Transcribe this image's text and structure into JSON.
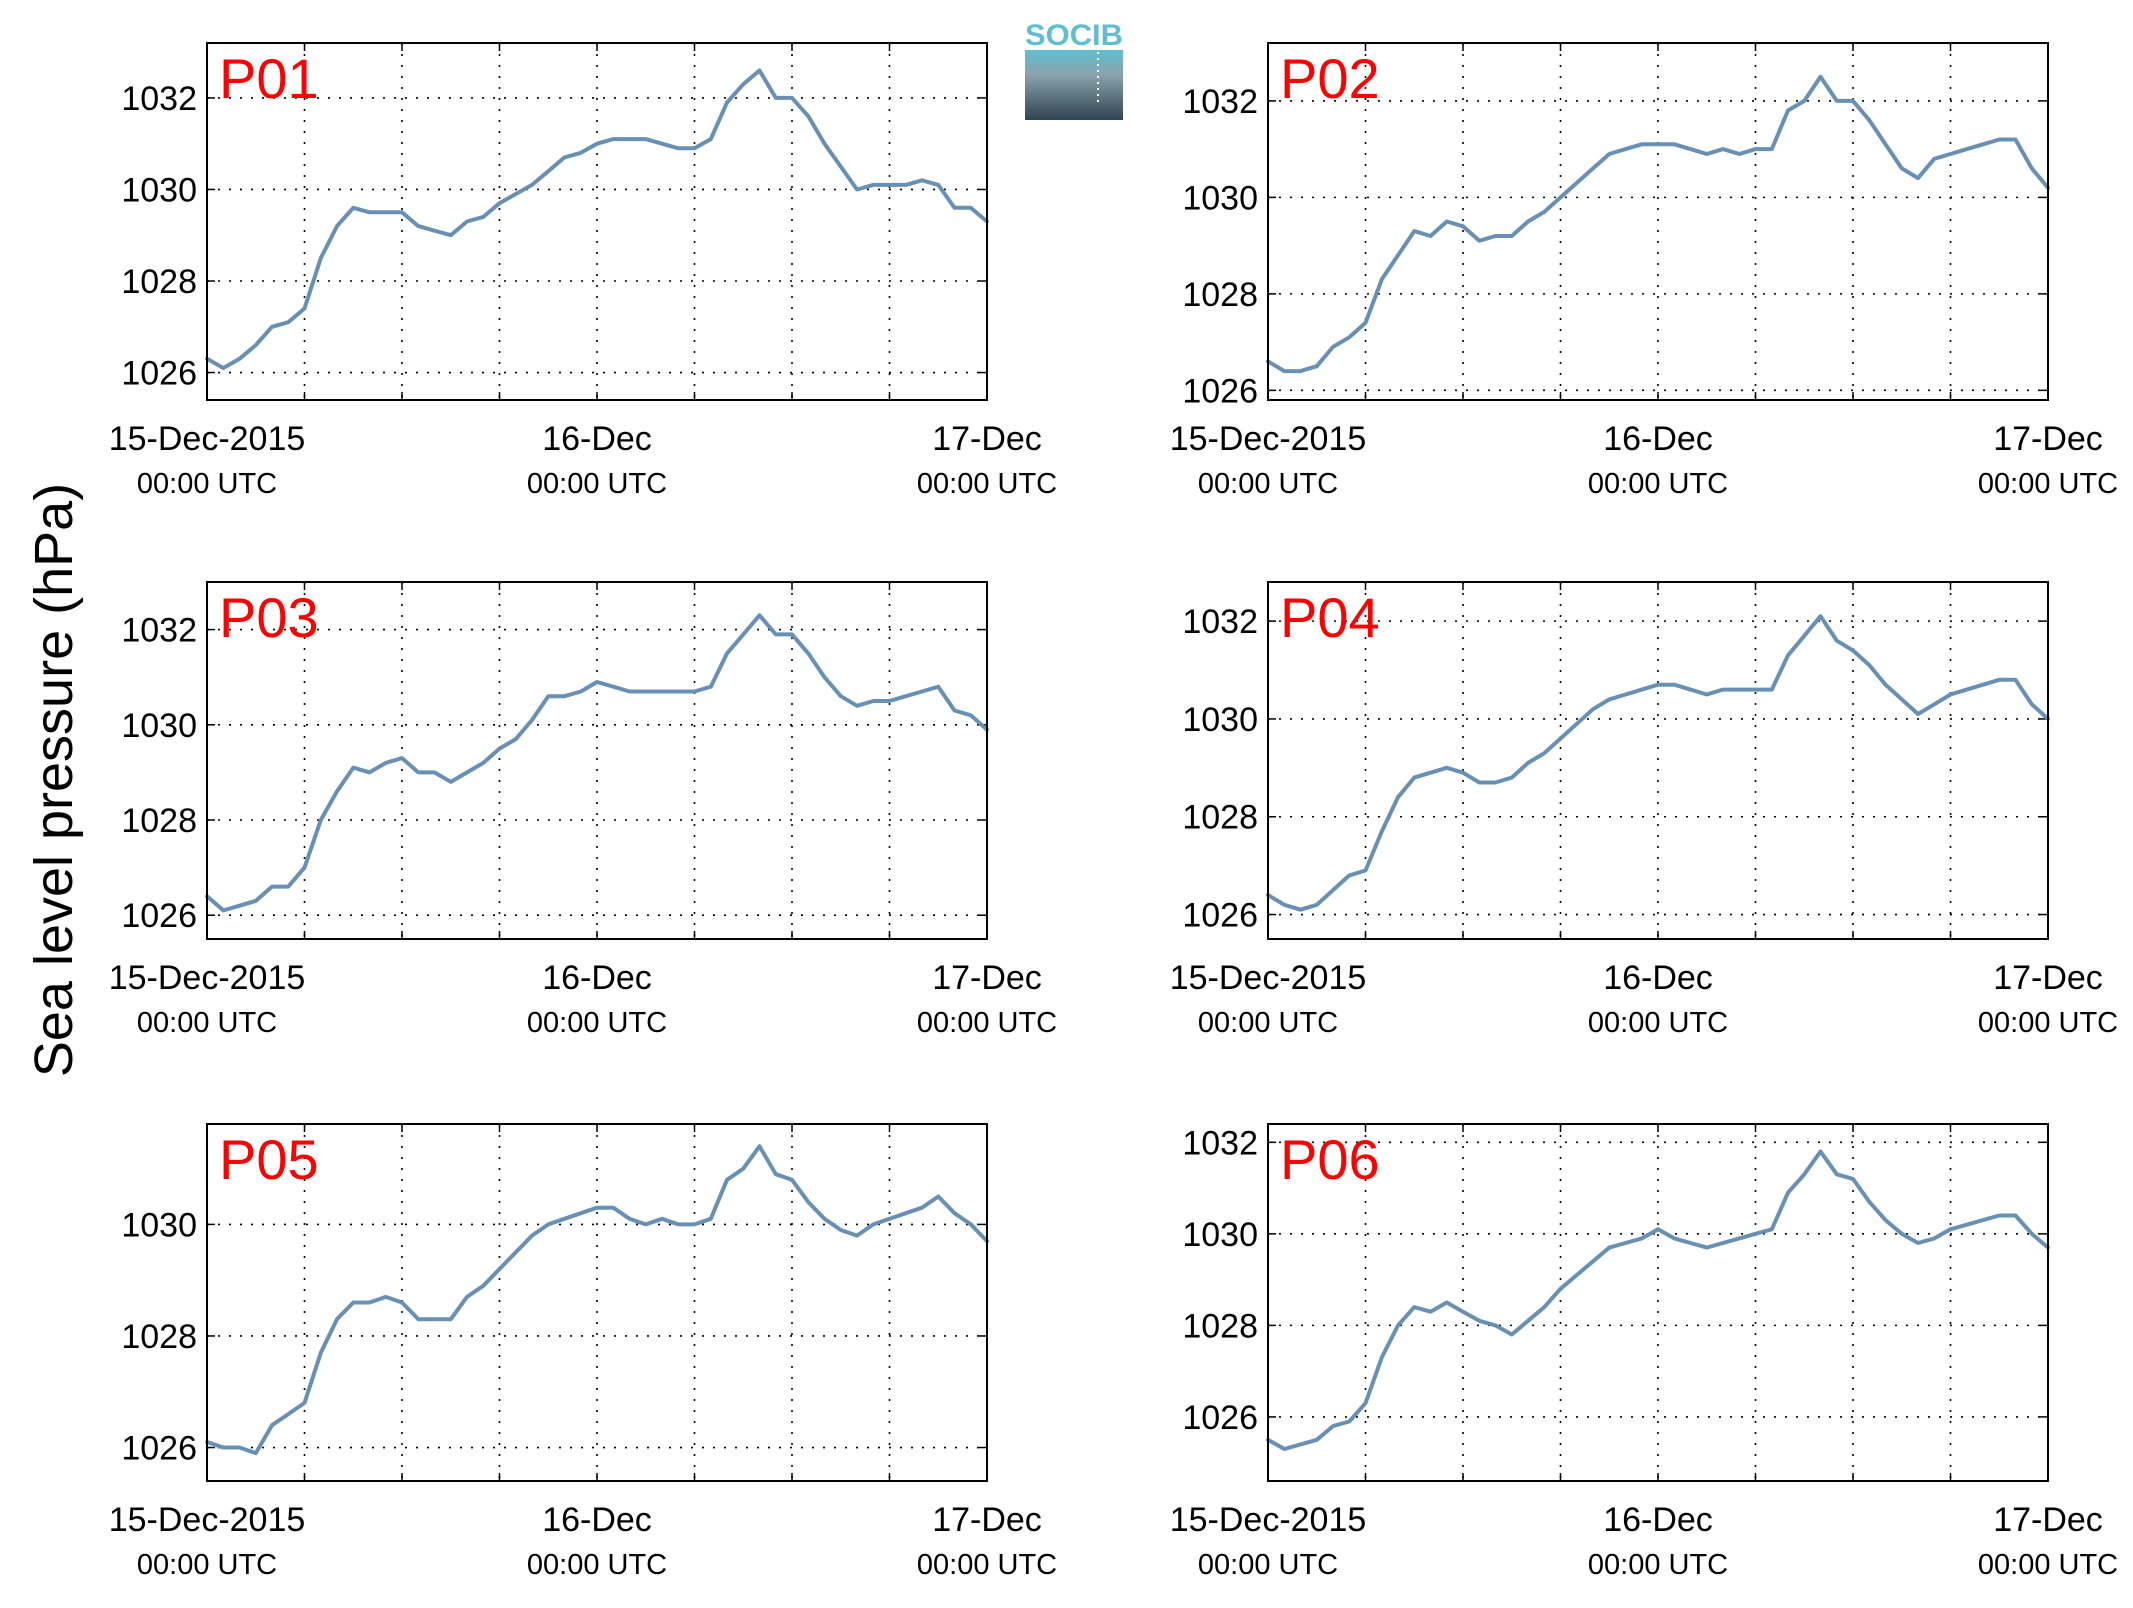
{
  "ylabel": "Sea level pressure (hPa)",
  "logo": {
    "text": "SOCIB"
  },
  "colors": {
    "series": "#6890b4",
    "panel_label": "#ff0000",
    "logo_text": "#5fbfd1"
  },
  "x_ticks": [
    {
      "t": 0,
      "label": "15-Dec-2015",
      "sub": "00:00 UTC"
    },
    {
      "t": 24,
      "label": "16-Dec",
      "sub": "00:00 UTC"
    },
    {
      "t": 48,
      "label": "17-Dec",
      "sub": "00:00 UTC"
    }
  ],
  "chart_data": [
    {
      "type": "line",
      "label": "P01",
      "xlim": [
        0,
        48
      ],
      "ylim": [
        1025.4,
        1033.2
      ],
      "yticks": [
        1026,
        1028,
        1030,
        1032
      ],
      "grid": true,
      "x": [
        0,
        1,
        2,
        3,
        4,
        5,
        6,
        7,
        8,
        9,
        10,
        11,
        12,
        13,
        14,
        15,
        16,
        17,
        18,
        19,
        20,
        21,
        22,
        23,
        24,
        25,
        26,
        27,
        28,
        29,
        30,
        31,
        32,
        33,
        34,
        35,
        36,
        37,
        38,
        39,
        40,
        41,
        42,
        43,
        44,
        45,
        46,
        47,
        48
      ],
      "y": [
        1026.3,
        1026.1,
        1026.3,
        1026.6,
        1027.0,
        1027.1,
        1027.4,
        1028.5,
        1029.2,
        1029.6,
        1029.5,
        1029.5,
        1029.5,
        1029.2,
        1029.1,
        1029.0,
        1029.3,
        1029.4,
        1029.7,
        1029.9,
        1030.1,
        1030.4,
        1030.7,
        1030.8,
        1031.0,
        1031.1,
        1031.1,
        1031.1,
        1031.0,
        1030.9,
        1030.9,
        1031.1,
        1031.9,
        1032.3,
        1032.6,
        1032.0,
        1032.0,
        1031.6,
        1031.0,
        1030.5,
        1030.0,
        1030.1,
        1030.1,
        1030.1,
        1030.2,
        1030.1,
        1029.6,
        1029.6,
        1029.3
      ]
    },
    {
      "type": "line",
      "label": "P02",
      "xlim": [
        0,
        48
      ],
      "ylim": [
        1025.8,
        1033.2
      ],
      "yticks": [
        1026,
        1028,
        1030,
        1032
      ],
      "grid": true,
      "x": [
        0,
        1,
        2,
        3,
        4,
        5,
        6,
        7,
        8,
        9,
        10,
        11,
        12,
        13,
        14,
        15,
        16,
        17,
        18,
        19,
        20,
        21,
        22,
        23,
        24,
        25,
        26,
        27,
        28,
        29,
        30,
        31,
        32,
        33,
        34,
        35,
        36,
        37,
        38,
        39,
        40,
        41,
        42,
        43,
        44,
        45,
        46,
        47,
        48
      ],
      "y": [
        1026.6,
        1026.4,
        1026.4,
        1026.5,
        1026.9,
        1027.1,
        1027.4,
        1028.3,
        1028.8,
        1029.3,
        1029.2,
        1029.5,
        1029.4,
        1029.1,
        1029.2,
        1029.2,
        1029.5,
        1029.7,
        1030.0,
        1030.3,
        1030.6,
        1030.9,
        1031.0,
        1031.1,
        1031.1,
        1031.1,
        1031.0,
        1030.9,
        1031.0,
        1030.9,
        1031.0,
        1031.0,
        1031.8,
        1032.0,
        1032.5,
        1032.0,
        1032.0,
        1031.6,
        1031.1,
        1030.6,
        1030.4,
        1030.8,
        1030.9,
        1031.0,
        1031.1,
        1031.2,
        1031.2,
        1030.6,
        1030.2
      ]
    },
    {
      "type": "line",
      "label": "P03",
      "xlim": [
        0,
        48
      ],
      "ylim": [
        1025.5,
        1033.0
      ],
      "yticks": [
        1026,
        1028,
        1030,
        1032
      ],
      "grid": true,
      "x": [
        0,
        1,
        2,
        3,
        4,
        5,
        6,
        7,
        8,
        9,
        10,
        11,
        12,
        13,
        14,
        15,
        16,
        17,
        18,
        19,
        20,
        21,
        22,
        23,
        24,
        25,
        26,
        27,
        28,
        29,
        30,
        31,
        32,
        33,
        34,
        35,
        36,
        37,
        38,
        39,
        40,
        41,
        42,
        43,
        44,
        45,
        46,
        47,
        48
      ],
      "y": [
        1026.4,
        1026.1,
        1026.2,
        1026.3,
        1026.6,
        1026.6,
        1027.0,
        1028.0,
        1028.6,
        1029.1,
        1029.0,
        1029.2,
        1029.3,
        1029.0,
        1029.0,
        1028.8,
        1029.0,
        1029.2,
        1029.5,
        1029.7,
        1030.1,
        1030.6,
        1030.6,
        1030.7,
        1030.9,
        1030.8,
        1030.7,
        1030.7,
        1030.7,
        1030.7,
        1030.7,
        1030.8,
        1031.5,
        1031.9,
        1032.3,
        1031.9,
        1031.9,
        1031.5,
        1031.0,
        1030.6,
        1030.4,
        1030.5,
        1030.5,
        1030.6,
        1030.7,
        1030.8,
        1030.3,
        1030.2,
        1029.9
      ]
    },
    {
      "type": "line",
      "label": "P04",
      "xlim": [
        0,
        48
      ],
      "ylim": [
        1025.5,
        1032.8
      ],
      "yticks": [
        1026,
        1028,
        1030,
        1032
      ],
      "grid": true,
      "x": [
        0,
        1,
        2,
        3,
        4,
        5,
        6,
        7,
        8,
        9,
        10,
        11,
        12,
        13,
        14,
        15,
        16,
        17,
        18,
        19,
        20,
        21,
        22,
        23,
        24,
        25,
        26,
        27,
        28,
        29,
        30,
        31,
        32,
        33,
        34,
        35,
        36,
        37,
        38,
        39,
        40,
        41,
        42,
        43,
        44,
        45,
        46,
        47,
        48
      ],
      "y": [
        1026.4,
        1026.2,
        1026.1,
        1026.2,
        1026.5,
        1026.8,
        1026.9,
        1027.7,
        1028.4,
        1028.8,
        1028.9,
        1029.0,
        1028.9,
        1028.7,
        1028.7,
        1028.8,
        1029.1,
        1029.3,
        1029.6,
        1029.9,
        1030.2,
        1030.4,
        1030.5,
        1030.6,
        1030.7,
        1030.7,
        1030.6,
        1030.5,
        1030.6,
        1030.6,
        1030.6,
        1030.6,
        1031.3,
        1031.7,
        1032.1,
        1031.6,
        1031.4,
        1031.1,
        1030.7,
        1030.4,
        1030.1,
        1030.3,
        1030.5,
        1030.6,
        1030.7,
        1030.8,
        1030.8,
        1030.3,
        1030.0
      ]
    },
    {
      "type": "line",
      "label": "P05",
      "xlim": [
        0,
        48
      ],
      "ylim": [
        1025.4,
        1031.8
      ],
      "yticks": [
        1026,
        1028,
        1030
      ],
      "grid": true,
      "x": [
        0,
        1,
        2,
        3,
        4,
        5,
        6,
        7,
        8,
        9,
        10,
        11,
        12,
        13,
        14,
        15,
        16,
        17,
        18,
        19,
        20,
        21,
        22,
        23,
        24,
        25,
        26,
        27,
        28,
        29,
        30,
        31,
        32,
        33,
        34,
        35,
        36,
        37,
        38,
        39,
        40,
        41,
        42,
        43,
        44,
        45,
        46,
        47,
        48
      ],
      "y": [
        1026.1,
        1026.0,
        1026.0,
        1025.9,
        1026.4,
        1026.6,
        1026.8,
        1027.7,
        1028.3,
        1028.6,
        1028.6,
        1028.7,
        1028.6,
        1028.3,
        1028.3,
        1028.3,
        1028.7,
        1028.9,
        1029.2,
        1029.5,
        1029.8,
        1030.0,
        1030.1,
        1030.2,
        1030.3,
        1030.3,
        1030.1,
        1030.0,
        1030.1,
        1030.0,
        1030.0,
        1030.1,
        1030.8,
        1031.0,
        1031.4,
        1030.9,
        1030.8,
        1030.4,
        1030.1,
        1029.9,
        1029.8,
        1030.0,
        1030.1,
        1030.2,
        1030.3,
        1030.5,
        1030.2,
        1030.0,
        1029.7
      ]
    },
    {
      "type": "line",
      "label": "P06",
      "xlim": [
        0,
        48
      ],
      "ylim": [
        1024.6,
        1032.4
      ],
      "yticks": [
        1026,
        1028,
        1030,
        1032
      ],
      "grid": true,
      "x": [
        0,
        1,
        2,
        3,
        4,
        5,
        6,
        7,
        8,
        9,
        10,
        11,
        12,
        13,
        14,
        15,
        16,
        17,
        18,
        19,
        20,
        21,
        22,
        23,
        24,
        25,
        26,
        27,
        28,
        29,
        30,
        31,
        32,
        33,
        34,
        35,
        36,
        37,
        38,
        39,
        40,
        41,
        42,
        43,
        44,
        45,
        46,
        47,
        48
      ],
      "y": [
        1025.5,
        1025.3,
        1025.4,
        1025.5,
        1025.8,
        1025.9,
        1026.3,
        1027.3,
        1028.0,
        1028.4,
        1028.3,
        1028.5,
        1028.3,
        1028.1,
        1028.0,
        1027.8,
        1028.1,
        1028.4,
        1028.8,
        1029.1,
        1029.4,
        1029.7,
        1029.8,
        1029.9,
        1030.1,
        1029.9,
        1029.8,
        1029.7,
        1029.8,
        1029.9,
        1030.0,
        1030.1,
        1030.9,
        1031.3,
        1031.8,
        1031.3,
        1031.2,
        1030.7,
        1030.3,
        1030.0,
        1029.8,
        1029.9,
        1030.1,
        1030.2,
        1030.3,
        1030.4,
        1030.4,
        1030.0,
        1029.7
      ]
    }
  ]
}
